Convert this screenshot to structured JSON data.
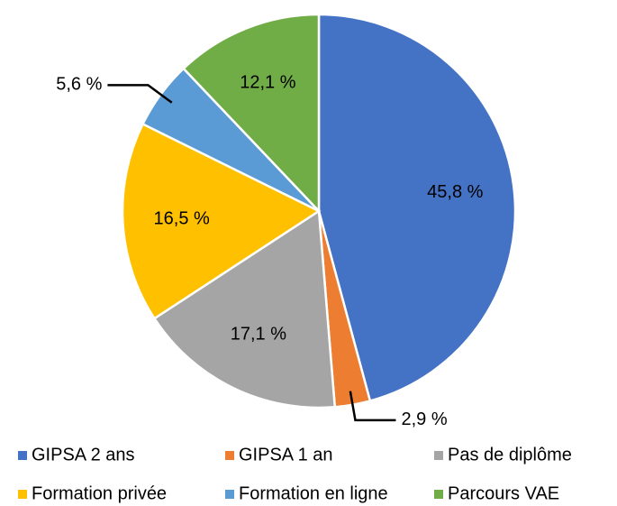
{
  "chart_data": {
    "type": "pie",
    "categories": [
      "GIPSA 2 ans",
      "GIPSA 1 an",
      "Pas de diplôme",
      "Formation privée",
      "Formation en ligne",
      "Parcours VAE"
    ],
    "values": [
      45.8,
      2.9,
      17.1,
      16.5,
      5.6,
      12.1
    ],
    "value_labels": [
      "45,8 %",
      "2,9 %",
      "17,1 %",
      "16,5 %",
      "5,6 %",
      "12,1 %"
    ],
    "colors": [
      "#4472c4",
      "#ed7d31",
      "#a5a5a5",
      "#ffc000",
      "#5b9bd5",
      "#70ad47"
    ],
    "legend": "bottom"
  }
}
